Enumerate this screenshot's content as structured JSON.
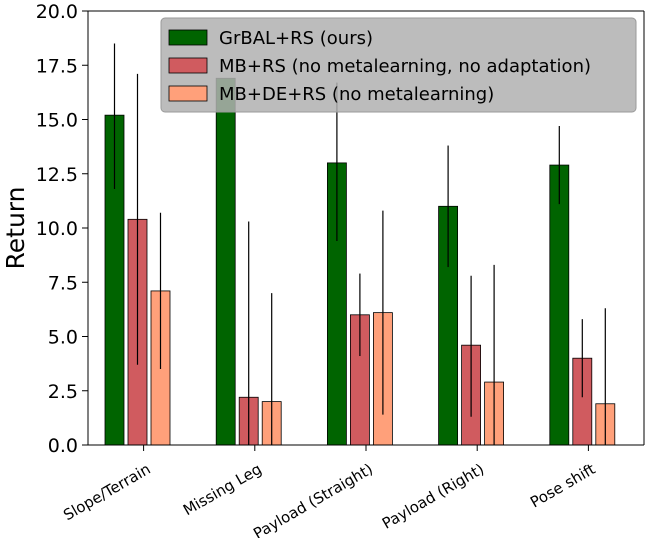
{
  "chart_data": {
    "type": "bar",
    "title": "",
    "xlabel": "",
    "ylabel": "Return",
    "ylim": [
      0,
      20
    ],
    "yticks": [
      "0.0",
      "2.5",
      "5.0",
      "7.5",
      "10.0",
      "12.5",
      "15.0",
      "17.5",
      "20.0"
    ],
    "categories": [
      "Slope/Terrain",
      "Missing Leg",
      "Payload (Straight)",
      "Payload (Right)",
      "Pose shift"
    ],
    "legend_position": "top-right",
    "grid": false,
    "series": [
      {
        "name": "GrBAL+RS (ours)",
        "color": "#006400",
        "values": [
          15.2,
          16.9,
          13.0,
          11.0,
          12.9
        ],
        "err_low": [
          11.8,
          16.9,
          9.4,
          8.2,
          11.1
        ],
        "err_high": [
          18.5,
          16.9,
          16.7,
          13.8,
          14.7
        ]
      },
      {
        "name": "MB+RS (no metalearning, no adaptation)",
        "color": "#d05b5f",
        "values": [
          10.4,
          2.2,
          6.0,
          4.6,
          4.0
        ],
        "err_low": [
          3.7,
          0.0,
          4.1,
          1.3,
          2.2
        ],
        "err_high": [
          17.1,
          10.3,
          7.9,
          7.8,
          5.8
        ]
      },
      {
        "name": "MB+DE+RS (no metalearning)",
        "color": "#ffa07a",
        "values": [
          7.1,
          2.0,
          6.1,
          2.9,
          1.9
        ],
        "err_low": [
          3.5,
          0.0,
          1.4,
          0.0,
          0.0
        ],
        "err_high": [
          10.7,
          7.0,
          10.8,
          8.3,
          6.3
        ]
      }
    ]
  }
}
